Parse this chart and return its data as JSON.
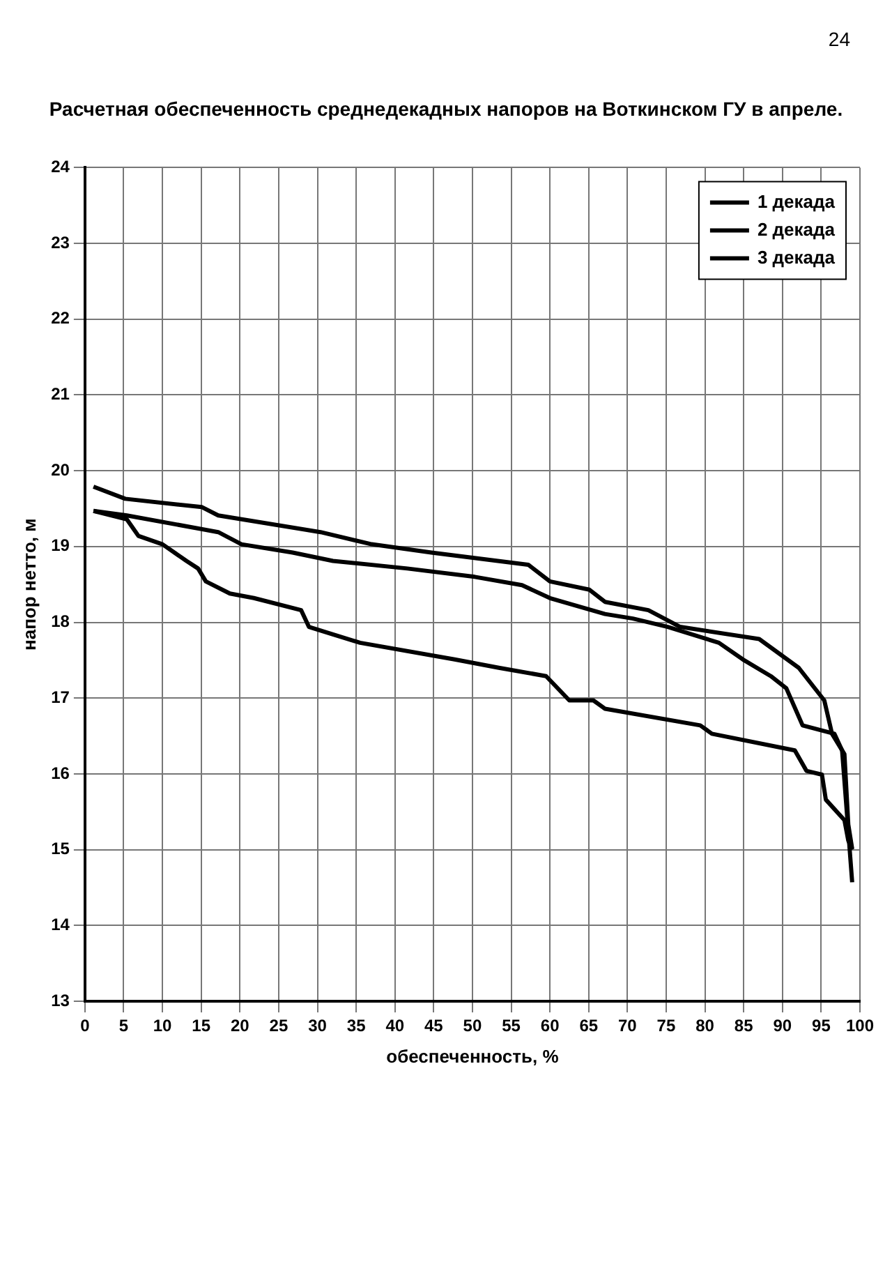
{
  "chart_data": {
    "type": "line",
    "title": "Расчетная обеспеченность среднедекадных напоров на Воткинском ГУ в апреле.",
    "xlabel": "обеспеченность, %",
    "ylabel": "напор нетто, м",
    "xlim": [
      0,
      100
    ],
    "xticks": [
      0,
      5,
      10,
      15,
      20,
      25,
      30,
      35,
      40,
      45,
      50,
      55,
      60,
      65,
      70,
      75,
      80,
      85,
      90,
      95,
      100
    ],
    "ylim": [
      13,
      24
    ],
    "yticks": [
      13,
      14,
      15,
      16,
      17,
      18,
      19,
      20,
      21,
      22,
      23,
      24
    ],
    "grid": true,
    "legend": "top right",
    "marker": "none",
    "line_style": "solid",
    "annotations": [
      "24"
    ],
    "series": [
      {
        "name": "1 декада",
        "color": "#000000",
        "x": [
          1.1,
          5.2,
          15.1,
          17.2,
          30.4,
          37.0,
          44.7,
          57.2,
          60.0,
          65.1,
          67.1,
          72.7,
          76.8,
          87.0,
          92.1,
          95.4,
          96.4,
          98.0,
          98.5,
          99.0
        ],
        "values": [
          19.79,
          19.63,
          19.52,
          19.41,
          19.19,
          19.03,
          18.92,
          18.76,
          18.54,
          18.43,
          18.27,
          18.16,
          17.94,
          17.78,
          17.4,
          16.97,
          16.53,
          16.26,
          15.33,
          15.01
        ]
      },
      {
        "name": "2 декада",
        "color": "#000000",
        "x": [
          1.1,
          5.4,
          17.2,
          20.2,
          26.8,
          32.0,
          41.6,
          50.3,
          56.4,
          60.0,
          67.1,
          70.7,
          75.2,
          81.8,
          84.9,
          88.5,
          90.5,
          92.6,
          96.7,
          97.7,
          99.0
        ],
        "values": [
          19.47,
          19.41,
          19.19,
          19.03,
          18.92,
          18.81,
          18.71,
          18.6,
          18.49,
          18.32,
          18.11,
          18.05,
          17.94,
          17.73,
          17.51,
          17.29,
          17.13,
          16.64,
          16.53,
          16.31,
          14.57
        ]
      },
      {
        "name": "3 декада",
        "color": "#000000",
        "x": [
          1.1,
          5.4,
          6.9,
          10.0,
          13.1,
          14.6,
          15.6,
          18.7,
          21.8,
          27.9,
          28.9,
          32.0,
          35.5,
          47.7,
          53.4,
          59.5,
          62.5,
          65.6,
          67.1,
          79.4,
          80.9,
          91.6,
          93.1,
          95.1,
          95.6,
          98.0,
          98.5,
          99.0
        ],
        "values": [
          19.47,
          19.36,
          19.14,
          19.03,
          18.81,
          18.71,
          18.54,
          18.38,
          18.32,
          18.16,
          17.94,
          17.84,
          17.73,
          17.51,
          17.4,
          17.29,
          16.97,
          16.97,
          16.86,
          16.64,
          16.53,
          16.31,
          16.04,
          15.99,
          15.66,
          15.39,
          15.12,
          15.0
        ]
      }
    ]
  }
}
